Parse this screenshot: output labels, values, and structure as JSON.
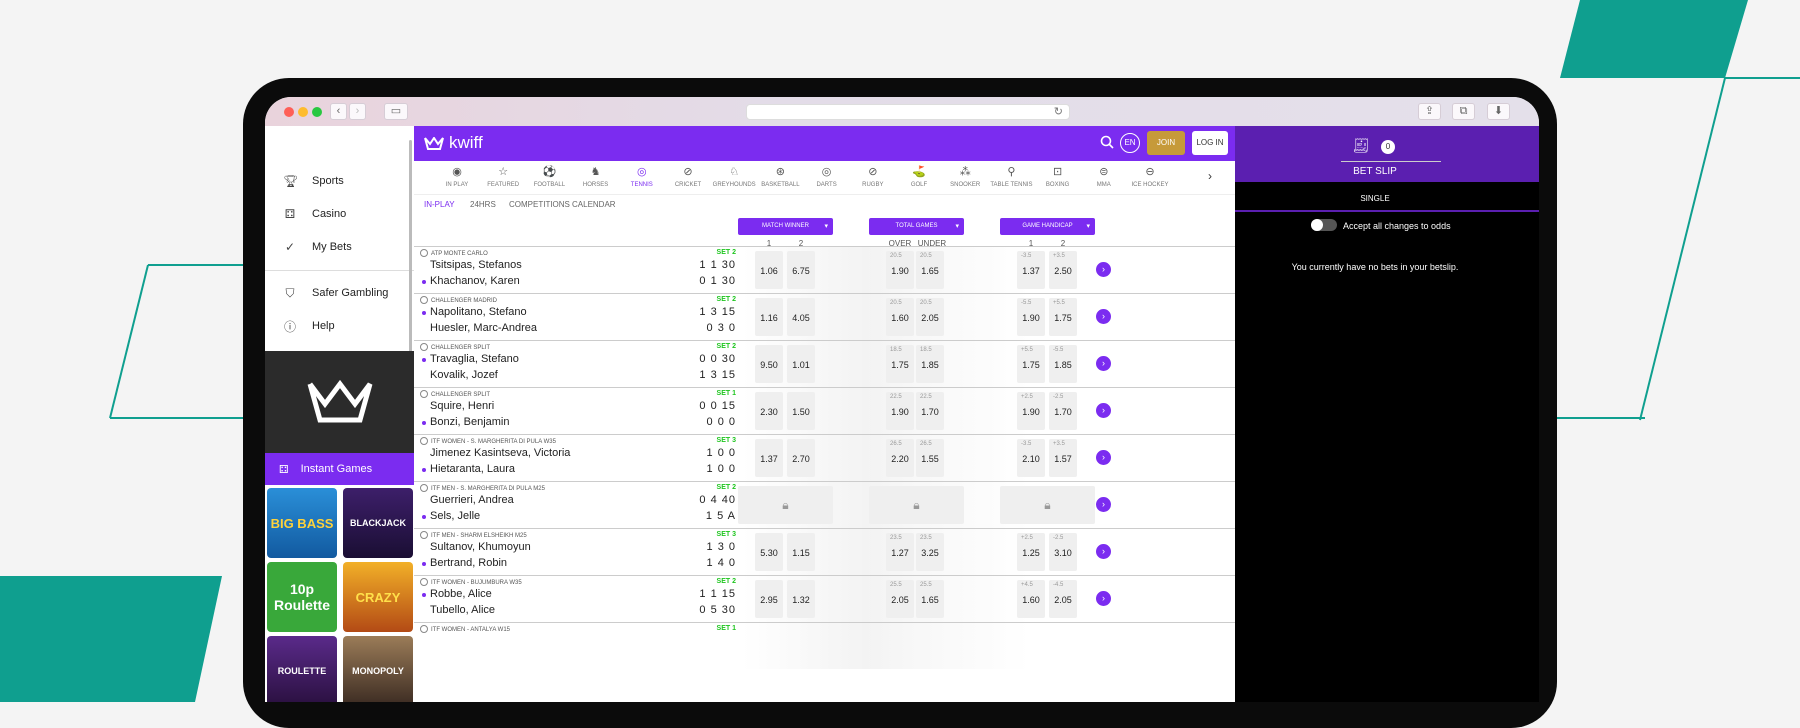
{
  "colors": {
    "accent": "#7b2cf0",
    "join": "#c69a3a",
    "set_green": "#1ec51e",
    "teal_decor": "#0f9f8f"
  },
  "brand": {
    "logo_text": "kwiff"
  },
  "header": {
    "lang": "EN",
    "join_label": "JOIN",
    "login_label": "LOG IN",
    "search_icon": "search-icon"
  },
  "sidebar": {
    "items": [
      {
        "label": "Sports",
        "icon": "trophy-icon"
      },
      {
        "label": "Casino",
        "icon": "dice-icon"
      },
      {
        "label": "My Bets",
        "icon": "check-circle-icon"
      },
      {
        "label": "Safer Gambling",
        "icon": "shield-icon"
      },
      {
        "label": "Help",
        "icon": "help-icon"
      }
    ],
    "instant_games_label": "Instant Games",
    "games": [
      {
        "title": "BIG BASS",
        "sub": "BIG BASS CRASH"
      },
      {
        "title": "BLACKJACK",
        "sub": ""
      },
      {
        "title": "10p Roulette",
        "sub": ""
      },
      {
        "title": "CRAZY",
        "sub": "CRAZY TIME"
      },
      {
        "title": "ROULETTE",
        "sub": ""
      },
      {
        "title": "MONOPOLY",
        "sub": "MONOPOLY"
      }
    ]
  },
  "sports": [
    {
      "label": "IN PLAY",
      "icon": "◉"
    },
    {
      "label": "FEATURED",
      "icon": "☆"
    },
    {
      "label": "FOOTBALL",
      "icon": "⚽"
    },
    {
      "label": "HORSES",
      "icon": "♞"
    },
    {
      "label": "TENNIS",
      "icon": "◎"
    },
    {
      "label": "CRICKET",
      "icon": "⊘"
    },
    {
      "label": "GREYHOUNDS",
      "icon": "♘"
    },
    {
      "label": "BASKETBALL",
      "icon": "⊛"
    },
    {
      "label": "DARTS",
      "icon": "◎"
    },
    {
      "label": "RUGBY",
      "icon": "⊘"
    },
    {
      "label": "GOLF",
      "icon": "⛳"
    },
    {
      "label": "SNOOKER",
      "icon": "⁂"
    },
    {
      "label": "TABLE TENNIS",
      "icon": "⚲"
    },
    {
      "label": "BOXING",
      "icon": "⊡"
    },
    {
      "label": "MMA",
      "icon": "⊜"
    },
    {
      "label": "ICE HOCKEY",
      "icon": "⊖"
    }
  ],
  "subtabs": [
    "IN-PLAY",
    "24HRS",
    "COMPETITIONS",
    "CALENDAR"
  ],
  "markets": [
    {
      "title": "MATCH WINNER",
      "cols": [
        "1",
        "2"
      ]
    },
    {
      "title": "TOTAL GAMES",
      "cols": [
        "OVER",
        "UNDER"
      ]
    },
    {
      "title": "GAME HANDICAP",
      "cols": [
        "1",
        "2"
      ]
    }
  ],
  "matches": [
    {
      "comp": "ATP MONTE CARLO",
      "set": "SET 2",
      "p1": "Tsitsipas, Stefanos",
      "p2": "Khachanov, Karen",
      "s1": "1 1 30",
      "s2": "0 1 30",
      "serving": 2,
      "mw": [
        "1.06",
        "6.75"
      ],
      "tg_line": [
        "20.5",
        "20.5"
      ],
      "tg": [
        "1.90",
        "1.65"
      ],
      "gh_line": [
        "-3.5",
        "+3.5"
      ],
      "gh": [
        "1.37",
        "2.50"
      ],
      "locked": false
    },
    {
      "comp": "CHALLENGER MADRID",
      "set": "SET 2",
      "p1": "Napolitano, Stefano",
      "p2": "Huesler, Marc-Andrea",
      "s1": "1 3 15",
      "s2": "0 3 0",
      "serving": 1,
      "mw": [
        "1.16",
        "4.05"
      ],
      "tg_line": [
        "20.5",
        "20.5"
      ],
      "tg": [
        "1.60",
        "2.05"
      ],
      "gh_line": [
        "-5.5",
        "+5.5"
      ],
      "gh": [
        "1.90",
        "1.75"
      ],
      "locked": false
    },
    {
      "comp": "CHALLENGER SPLIT",
      "set": "SET 2",
      "p1": "Travaglia, Stefano",
      "p2": "Kovalik, Jozef",
      "s1": "0 0 30",
      "s2": "1 3 15",
      "serving": 1,
      "mw": [
        "9.50",
        "1.01"
      ],
      "tg_line": [
        "18.5",
        "18.5"
      ],
      "tg": [
        "1.75",
        "1.85"
      ],
      "gh_line": [
        "+5.5",
        "-5.5"
      ],
      "gh": [
        "1.75",
        "1.85"
      ],
      "locked": false
    },
    {
      "comp": "CHALLENGER SPLIT",
      "set": "SET 1",
      "p1": "Squire, Henri",
      "p2": "Bonzi, Benjamin",
      "s1": "0 0 15",
      "s2": "0 0 0",
      "serving": 2,
      "mw": [
        "2.30",
        "1.50"
      ],
      "tg_line": [
        "22.5",
        "22.5"
      ],
      "tg": [
        "1.90",
        "1.70"
      ],
      "gh_line": [
        "+2.5",
        "-2.5"
      ],
      "gh": [
        "1.90",
        "1.70"
      ],
      "locked": false
    },
    {
      "comp": "ITF WOMEN - S. MARGHERITA DI PULA W35",
      "set": "SET 3",
      "p1": "Jimenez Kasintseva, Victoria",
      "p2": "Hietaranta, Laura",
      "s1": "1 0 0",
      "s2": "1 0 0",
      "serving": 2,
      "mw": [
        "1.37",
        "2.70"
      ],
      "tg_line": [
        "26.5",
        "26.5"
      ],
      "tg": [
        "2.20",
        "1.55"
      ],
      "gh_line": [
        "-3.5",
        "+3.5"
      ],
      "gh": [
        "2.10",
        "1.57"
      ],
      "locked": false
    },
    {
      "comp": "ITF MEN - S. MARGHERITA DI PULA M25",
      "set": "SET 2",
      "p1": "Guerrieri, Andrea",
      "p2": "Sels, Jelle",
      "s1": "0 4 40",
      "s2": "1 5  A",
      "serving": 2,
      "mw": [
        "",
        ""
      ],
      "tg_line": [
        "",
        ""
      ],
      "tg": [
        "",
        ""
      ],
      "gh_line": [
        "",
        ""
      ],
      "gh": [
        "",
        ""
      ],
      "locked": true
    },
    {
      "comp": "ITF MEN - SHARM ELSHEIKH M25",
      "set": "SET 3",
      "p1": "Sultanov, Khumoyun",
      "p2": "Bertrand, Robin",
      "s1": "1 3 0",
      "s2": "1 4 0",
      "serving": 2,
      "mw": [
        "5.30",
        "1.15"
      ],
      "tg_line": [
        "23.5",
        "23.5"
      ],
      "tg": [
        "1.27",
        "3.25"
      ],
      "gh_line": [
        "+2.5",
        "-2.5"
      ],
      "gh": [
        "1.25",
        "3.10"
      ],
      "locked": false
    },
    {
      "comp": "ITF WOMEN - BUJUMBURA W35",
      "set": "SET 2",
      "p1": "Robbe, Alice",
      "p2": "Tubello, Alice",
      "s1": "1 1 15",
      "s2": "0 5 30",
      "serving": 1,
      "mw": [
        "2.95",
        "1.32"
      ],
      "tg_line": [
        "25.5",
        "25.5"
      ],
      "tg": [
        "2.05",
        "1.65"
      ],
      "gh_line": [
        "+4.5",
        "-4.5"
      ],
      "gh": [
        "1.60",
        "2.05"
      ],
      "locked": false
    },
    {
      "comp": "ITF WOMEN - ANTALYA W15",
      "set": "SET 1",
      "p1": "",
      "p2": "",
      "s1": "",
      "s2": "",
      "serving": 0,
      "mw": [
        "",
        ""
      ],
      "tg_line": [
        "",
        ""
      ],
      "tg": [
        "",
        ""
      ],
      "gh_line": [
        "",
        ""
      ],
      "gh": [
        "",
        ""
      ],
      "locked": false
    }
  ],
  "betslip": {
    "count": "0",
    "title": "BET SLIP",
    "tab": "SINGLE",
    "accept_label": "Accept all changes to odds",
    "empty_text": "You currently have no bets in your betslip."
  }
}
